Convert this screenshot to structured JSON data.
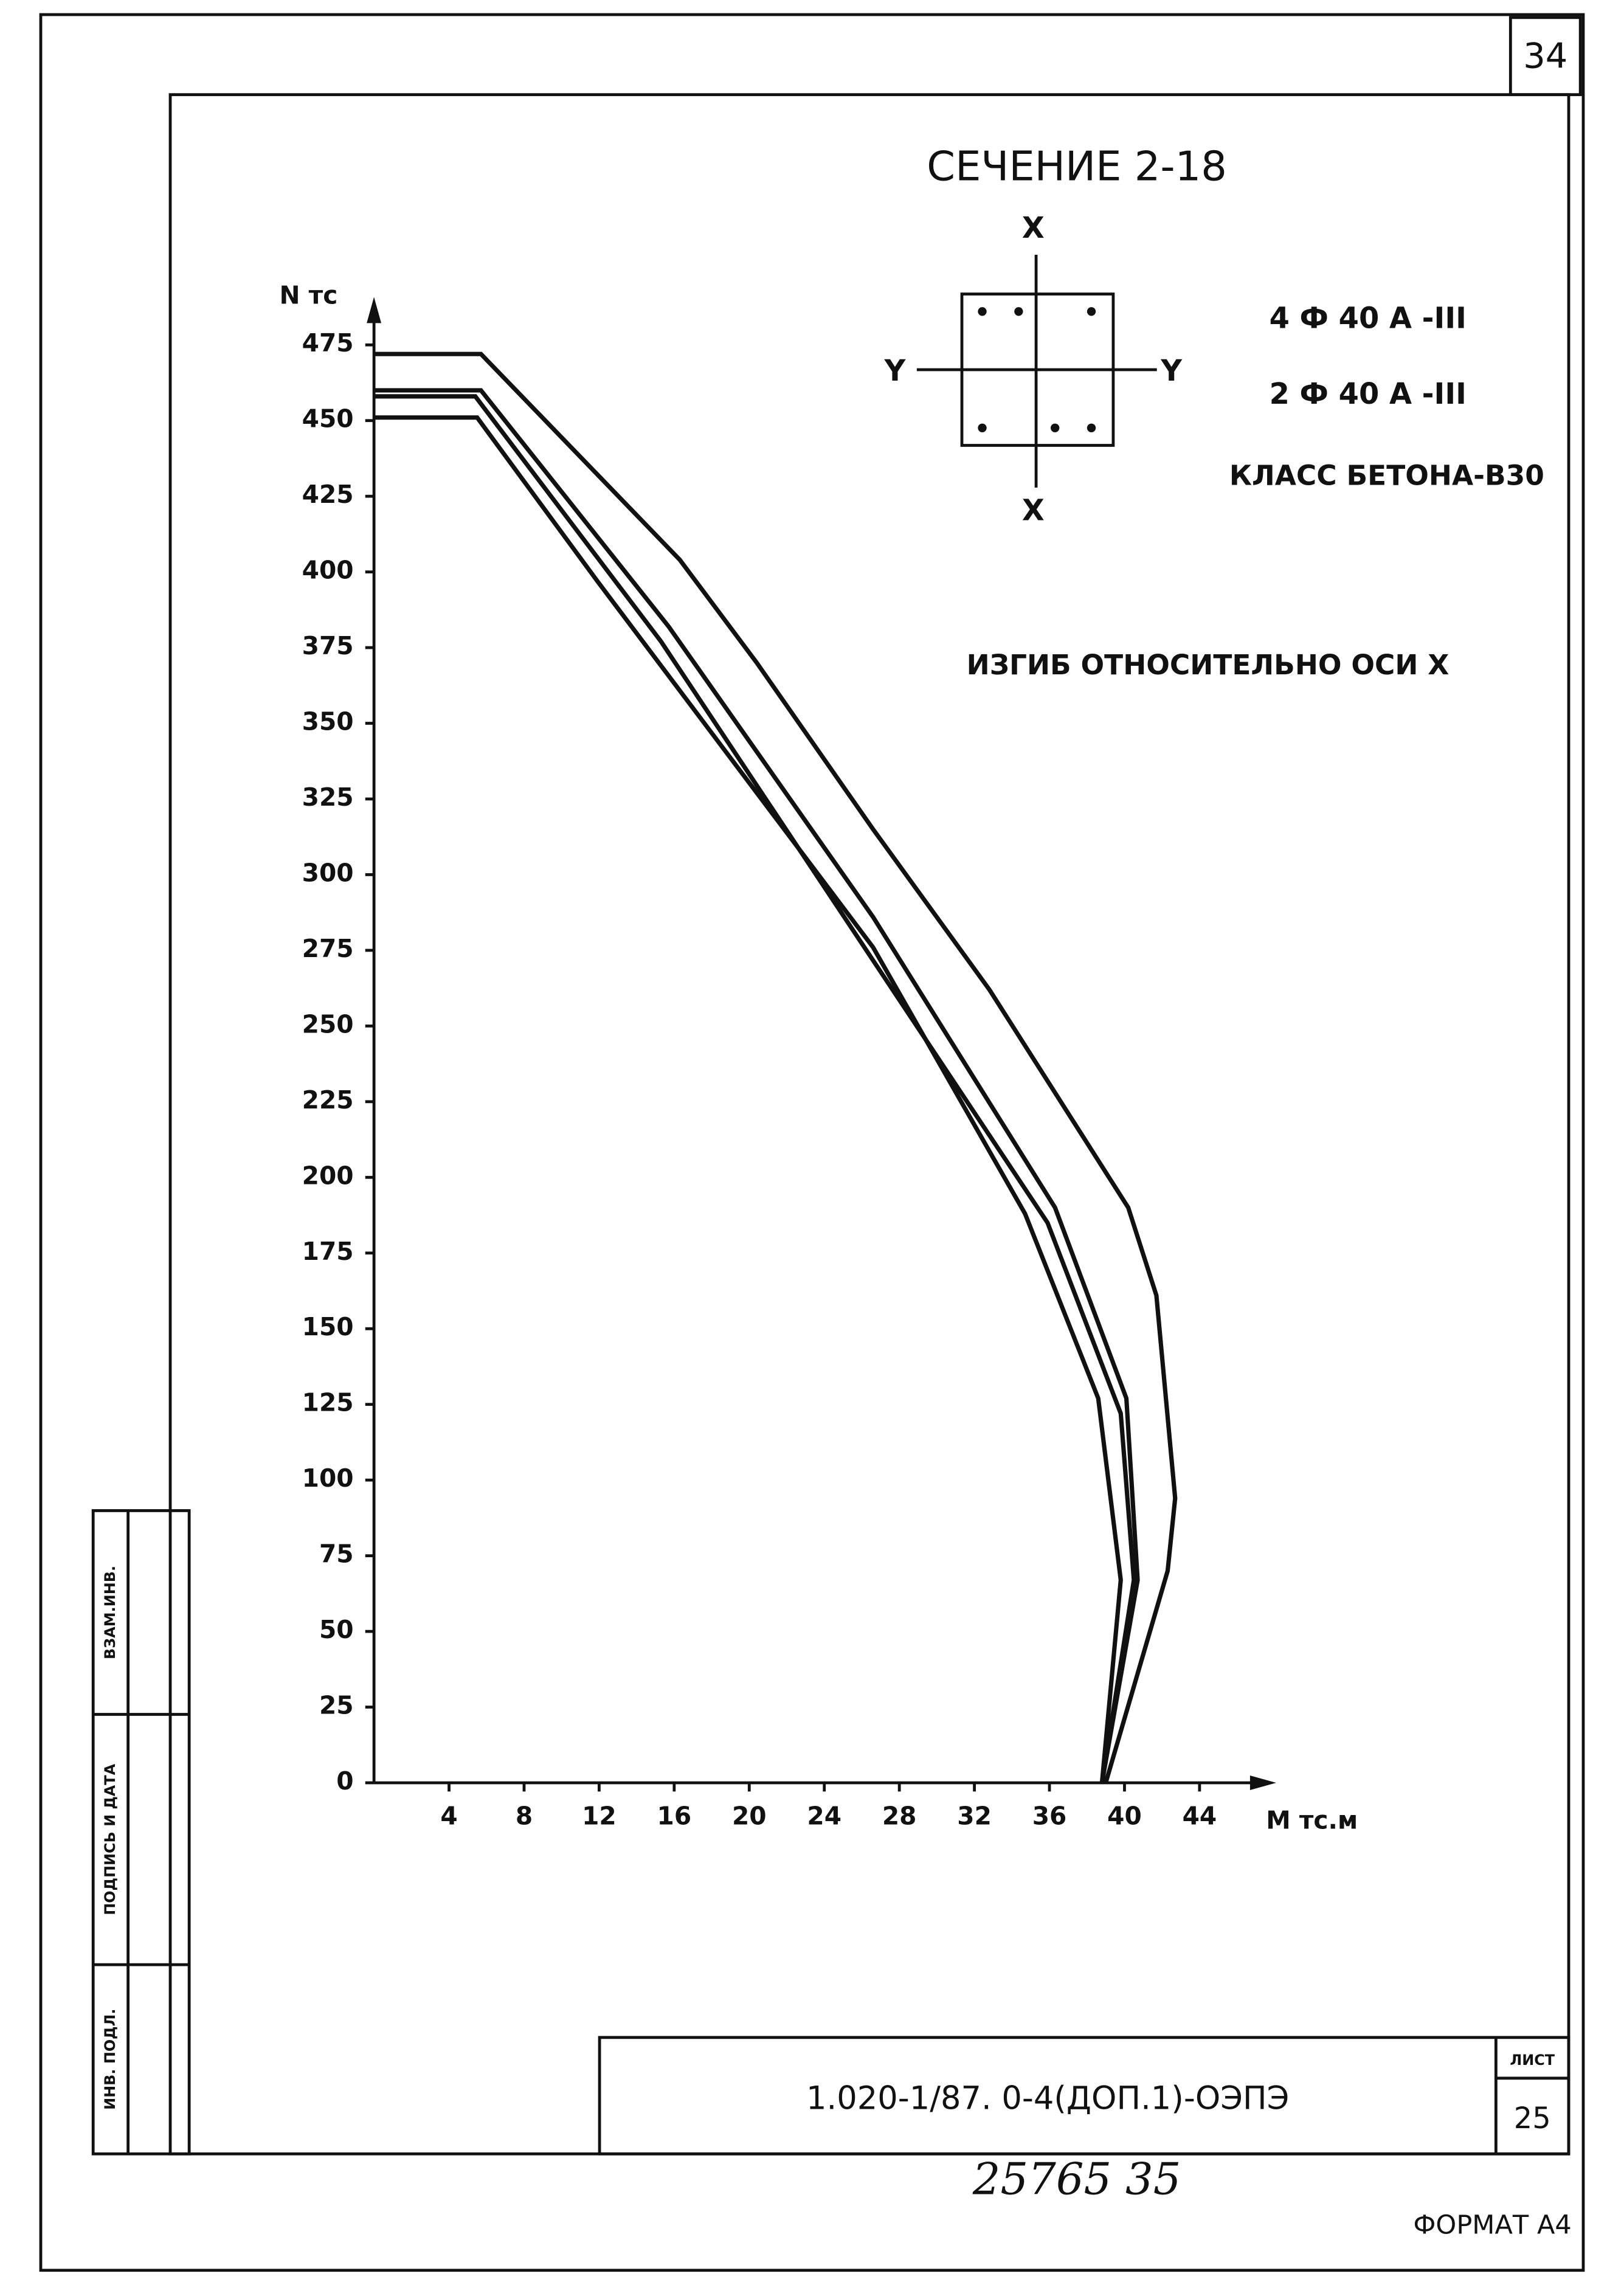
{
  "chart_data": {
    "type": "line",
    "title": "СЕЧЕНИЕ 2-18",
    "x_label": "M тс.м",
    "y_label": "N тс",
    "notes": [
      "4 Ф 40 А -III",
      "2 Ф 40 А -III",
      "КЛАСС БЕТОНА-В30",
      "ИЗГИБ ОТНОСИТЕЛЬНО ОСИ Х"
    ],
    "section_labels": {
      "top": "X",
      "bottom": "X",
      "left": "Y",
      "right": "Y"
    },
    "xlim": [
      0,
      47
    ],
    "ylim": [
      0,
      487
    ],
    "xticks": [
      4,
      8,
      12,
      16,
      20,
      24,
      28,
      32,
      36,
      40,
      44
    ],
    "yticks": [
      0,
      25,
      50,
      75,
      100,
      125,
      150,
      175,
      200,
      225,
      250,
      275,
      300,
      325,
      350,
      375,
      400,
      425,
      450,
      475
    ],
    "color": "#111111",
    "series": [
      {
        "x": [
          0,
          5.7,
          16.3,
          20.4,
          26.6,
          32.8,
          40.2,
          41.7,
          42.7,
          42.3,
          39
        ],
        "values": [
          472,
          472,
          404,
          370,
          315,
          262,
          190,
          161,
          94,
          70,
          0
        ]
      },
      {
        "x": [
          0,
          5.7,
          15.7,
          26.6,
          36.3,
          40.1,
          40.7,
          38.8
        ],
        "values": [
          460,
          460,
          382,
          286,
          190,
          127,
          67,
          0
        ]
      },
      {
        "x": [
          0,
          5.4,
          15.3,
          35.9,
          39.8,
          40.5,
          38.8
        ],
        "values": [
          458,
          458,
          377,
          185,
          122,
          67,
          0
        ]
      },
      {
        "x": [
          0,
          5.5,
          11.9,
          26.6,
          34.7,
          38.6,
          39.8,
          38.8
        ],
        "values": [
          451,
          451,
          397,
          276,
          188,
          127,
          67,
          0
        ]
      }
    ]
  },
  "sheet": {
    "page_corner": "34",
    "code": "1.020-1/87. 0-4(ДОП.1)-ОЭПЭ",
    "sheet_label": "ЛИСТ",
    "sheet_number": "25",
    "handwritten": "25765   35",
    "format": "ФОРМАТ А4",
    "side_labels": [
      "ВЗАМ.ИНВ.",
      "ПОДПИСЬ И ДАТА",
      "ИНВ. ПОДЛ."
    ]
  }
}
